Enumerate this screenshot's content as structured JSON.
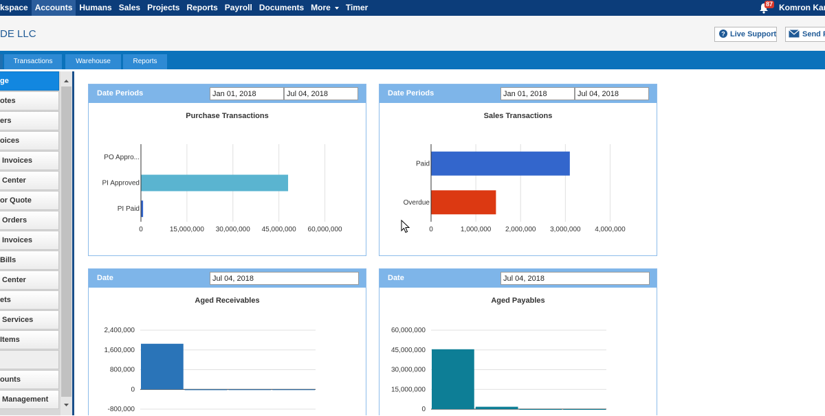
{
  "topnav": {
    "items": [
      {
        "label": "kspace"
      },
      {
        "label": "Accounts",
        "active": true
      },
      {
        "label": "Humans"
      },
      {
        "label": "Sales"
      },
      {
        "label": "Projects"
      },
      {
        "label": "Reports"
      },
      {
        "label": "Payroll"
      },
      {
        "label": "Documents"
      },
      {
        "label": "More",
        "has_caret": true
      },
      {
        "label": "Timer"
      }
    ],
    "notification_count": "87",
    "user_name": "Komron Kam"
  },
  "header": {
    "company_name": "DE LLC",
    "live_support_label": "Live Support",
    "send_label": "Send F"
  },
  "tabs": [
    {
      "label": ""
    },
    {
      "label": "Transactions"
    },
    {
      "label": "Warehouse"
    },
    {
      "label": "Reports"
    }
  ],
  "sidebar": {
    "items": [
      {
        "label": "ge",
        "active": true
      },
      {
        "label": "otes"
      },
      {
        "label": "ers"
      },
      {
        "label": "oices"
      },
      {
        "label": "Invoices"
      },
      {
        "label": "Center"
      },
      {
        "label": "or Quote"
      },
      {
        "label": "Orders"
      },
      {
        "label": "Invoices"
      },
      {
        "label": "Bills"
      },
      {
        "label": "Center"
      },
      {
        "label": "ets"
      },
      {
        "label": "Services"
      },
      {
        "label": "Items"
      },
      {
        "label": ""
      },
      {
        "label": "ounts"
      },
      {
        "label": "Management"
      }
    ]
  },
  "panels": {
    "purchase": {
      "header_label": "Date Periods",
      "date_from": "Jan 01, 2018",
      "date_to": "Jul 04, 2018",
      "chart_title": "Purchase Transactions"
    },
    "sales": {
      "header_label": "Date Periods",
      "date_from": "Jan 01, 2018",
      "date_to": "Jul 04, 2018",
      "chart_title": "Sales Transactions"
    },
    "receivables": {
      "header_label": "Date",
      "date": "Jul 04, 2018",
      "chart_title": "Aged Receivables"
    },
    "payables": {
      "header_label": "Date",
      "date": "Jul 04, 2018",
      "chart_title": "Aged Payables"
    }
  },
  "chart_data": [
    {
      "id": "purchase",
      "type": "bar",
      "orientation": "horizontal",
      "title": "Purchase Transactions",
      "categories": [
        "PO Appro...",
        "PI Approved",
        "PI Paid"
      ],
      "values": [
        0,
        48000000,
        700000
      ],
      "colors": [
        "#3366cc",
        "#5ab4d0",
        "#3366cc"
      ],
      "xlim": [
        0,
        67500000
      ],
      "ticks": [
        0,
        15000000,
        30000000,
        45000000,
        60000000
      ],
      "tick_labels": [
        "0",
        "15,000,000",
        "30,000,000",
        "45,000,000",
        "60,000,000"
      ],
      "grid": true
    },
    {
      "id": "sales",
      "type": "bar",
      "orientation": "horizontal",
      "title": "Sales Transactions",
      "categories": [
        "Paid",
        "Overdue"
      ],
      "values": [
        3100000,
        1450000
      ],
      "colors": [
        "#3366cc",
        "#dc3912"
      ],
      "xlim": [
        0,
        4500000
      ],
      "ticks": [
        0,
        1000000,
        2000000,
        3000000,
        4000000
      ],
      "tick_labels": [
        "0",
        "1,000,000",
        "2,000,000",
        "3,000,000",
        "4,000,000"
      ],
      "grid": true
    },
    {
      "id": "receivables",
      "type": "bar",
      "orientation": "vertical",
      "title": "Aged Receivables",
      "values": [
        1850000,
        -30000,
        0,
        0
      ],
      "colors": [
        "#2a74b8",
        "#2a74b8",
        "#2a74b8",
        "#2a74b8"
      ],
      "ylim": [
        -800000,
        2400000
      ],
      "ticks": [
        2400000,
        1600000,
        800000,
        0,
        -800000
      ],
      "tick_labels": [
        "2,400,000",
        "1,600,000",
        "800,000",
        "0",
        "-800,000"
      ],
      "grid": true
    },
    {
      "id": "payables",
      "type": "bar",
      "orientation": "vertical",
      "title": "Aged Payables",
      "values": [
        45500000,
        1800000,
        0,
        0
      ],
      "colors": [
        "#0d7e96",
        "#0d7e96",
        "#0d7e96",
        "#0d7e96"
      ],
      "ylim": [
        0,
        60000000
      ],
      "ticks": [
        60000000,
        45000000,
        30000000,
        15000000,
        0
      ],
      "tick_labels": [
        "60,000,000",
        "45,000,000",
        "30,000,000",
        "15,000,000",
        "0"
      ],
      "grid": true
    }
  ],
  "colors": {
    "topnav_bg": "#0c3d7a",
    "tabbar_bg": "#0b72bb",
    "panel_header_bg": "#7eb5e9",
    "sidebar_active": "#1287e0"
  }
}
